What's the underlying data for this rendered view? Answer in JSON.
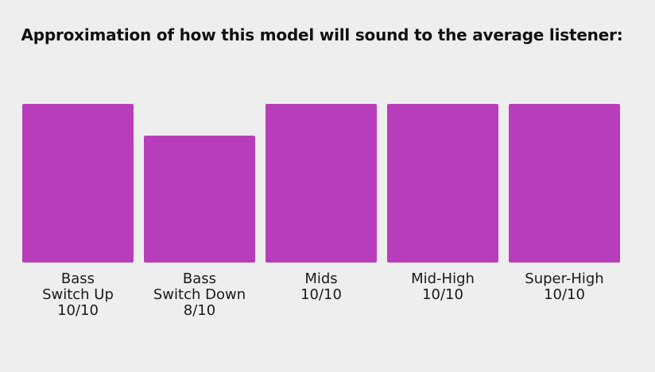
{
  "chart_data": {
    "type": "bar",
    "title": "Approximation of how this model will sound to the average listener:",
    "categories": [
      [
        "Bass",
        "Switch Up",
        "10/10"
      ],
      [
        "Bass",
        "Switch Down",
        "8/10"
      ],
      [
        "Mids",
        "10/10"
      ],
      [
        "Mid-High",
        "10/10"
      ],
      [
        "Super-High",
        "10/10"
      ]
    ],
    "values": [
      10,
      8,
      10,
      10,
      10
    ],
    "ylim": [
      0,
      10
    ],
    "bar_color": "#b83dba",
    "xlabel": "",
    "ylabel": "",
    "grid": false,
    "legend": "none"
  }
}
